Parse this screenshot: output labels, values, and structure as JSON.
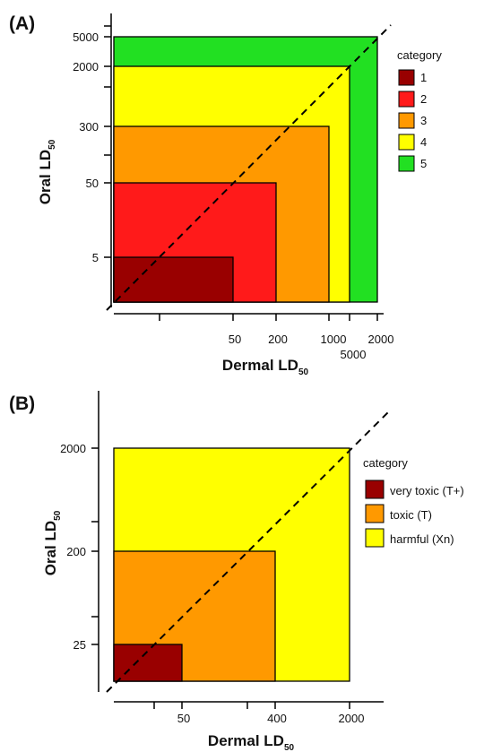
{
  "chart_data": [
    {
      "panel": "(A)",
      "type": "area",
      "xlabel": "Dermal LD",
      "xlabel_sub": "50",
      "ylabel": "Oral LD",
      "ylabel_sub": "50",
      "x_ticks": [
        "50",
        "200",
        "1000",
        "2000",
        "5000"
      ],
      "y_ticks": [
        "5000",
        "2000",
        "300",
        "50",
        "5"
      ],
      "legend_title": "category",
      "legend_position": "right",
      "diagonal": "dashed",
      "series": [
        {
          "name": "5",
          "dermal_max": 5000,
          "oral_max": 5000,
          "color": "#22e022"
        },
        {
          "name": "4",
          "dermal_max": 2000,
          "oral_max": 2000,
          "color": "#ffff00"
        },
        {
          "name": "3",
          "dermal_max": 1000,
          "oral_max": 300,
          "color": "#ff9900"
        },
        {
          "name": "2",
          "dermal_max": 200,
          "oral_max": 50,
          "color": "#ff1a1a"
        },
        {
          "name": "1",
          "dermal_max": 50,
          "oral_max": 5,
          "color": "#990000"
        }
      ]
    },
    {
      "panel": "(B)",
      "type": "area",
      "xlabel": "Dermal LD",
      "xlabel_sub": "50",
      "ylabel": "Oral LD",
      "ylabel_sub": "50",
      "x_ticks": [
        "50",
        "400",
        "2000"
      ],
      "y_ticks": [
        "2000",
        "200",
        "25"
      ],
      "legend_title": "category",
      "legend_position": "right",
      "diagonal": "dashed",
      "series": [
        {
          "name": "harmful (Xn)",
          "dermal_max": 2000,
          "oral_max": 2000,
          "color": "#ffff00"
        },
        {
          "name": "toxic (T)",
          "dermal_max": 400,
          "oral_max": 200,
          "color": "#ff9900"
        },
        {
          "name": "very toxic (T+)",
          "dermal_max": 50,
          "oral_max": 25,
          "color": "#990000"
        }
      ]
    }
  ]
}
